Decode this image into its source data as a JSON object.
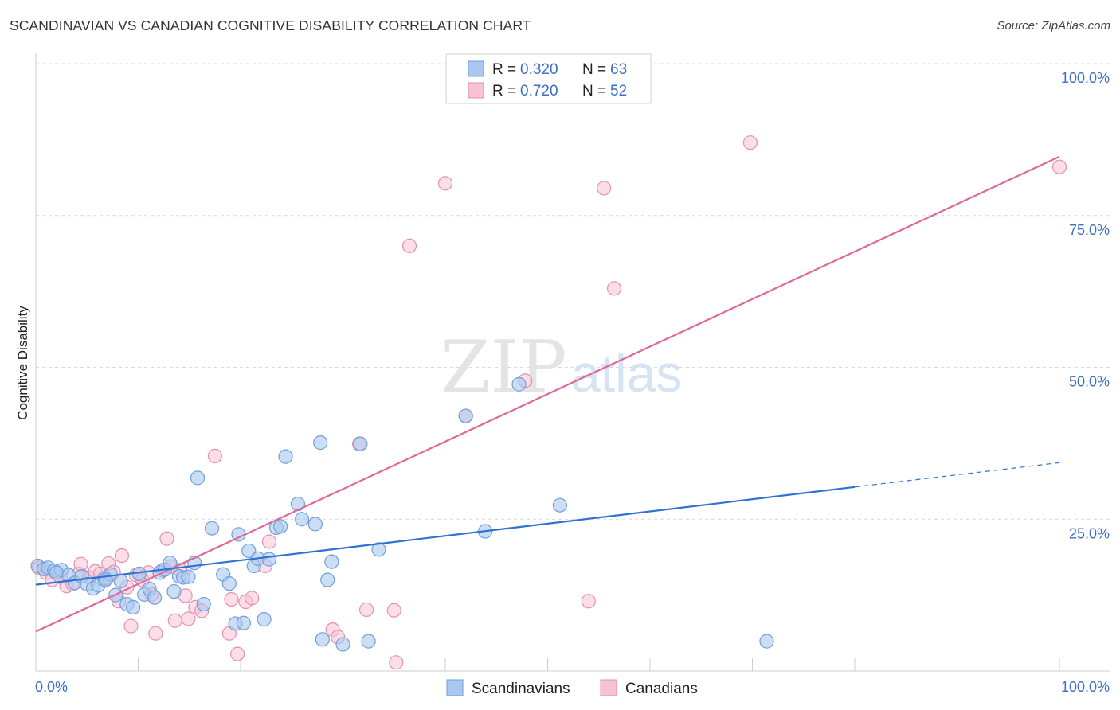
{
  "header": {
    "title": "SCANDINAVIAN VS CANADIAN COGNITIVE DISABILITY CORRELATION CHART",
    "source": "Source: ZipAtlas.com"
  },
  "watermark": {
    "part1": "ZIP",
    "part2": "atlas"
  },
  "colors": {
    "blue_fill": "#a9c8f0",
    "blue_stroke": "#6e9fdc",
    "blue_line": "#2f72d1",
    "pink_fill": "#f7c2d3",
    "pink_stroke": "#e98fb0",
    "pink_line": "#e0679a",
    "tick_text": "#3d6fc4",
    "grid": "#d8d8d8"
  },
  "chart_data": {
    "type": "scatter",
    "ylabel": "Cognitive Disability",
    "xlabel": "",
    "xlim": [
      0,
      100
    ],
    "ylim": [
      0,
      100
    ],
    "x_tick_labels": [
      "0.0%",
      "100.0%"
    ],
    "y_ticks": [
      25,
      50,
      75,
      100
    ],
    "y_tick_labels": [
      "25.0%",
      "50.0%",
      "75.0%",
      "100.0%"
    ],
    "grid": "horizontal dashed",
    "legend_top": [
      {
        "r_label": "R =",
        "r_value": "0.320",
        "n_label": "N =",
        "n_value": "63"
      },
      {
        "r_label": "R =",
        "r_value": "0.720",
        "n_label": "N =",
        "n_value": "52"
      }
    ],
    "legend_bottom": [
      "Scandinavians",
      "Canadians"
    ],
    "series": [
      {
        "name": "Scandinavians",
        "color": "#a9c8f0",
        "trend": {
          "x0": 0,
          "y0": 14.2,
          "x1": 80,
          "y1": 30.3,
          "dashed_to_x": 100,
          "dashed_to_y": 34.3
        },
        "points": [
          [
            0.2,
            17.3
          ],
          [
            0.8,
            16.8
          ],
          [
            1.2,
            17.0
          ],
          [
            1.8,
            16.5
          ],
          [
            2.5,
            16.6
          ],
          [
            3.2,
            15.8
          ],
          [
            3.8,
            14.5
          ],
          [
            4.5,
            15.6
          ],
          [
            5.0,
            14.3
          ],
          [
            5.6,
            13.6
          ],
          [
            6.1,
            14.1
          ],
          [
            6.7,
            15.3
          ],
          [
            7.3,
            15.9
          ],
          [
            7.8,
            12.5
          ],
          [
            8.3,
            14.8
          ],
          [
            8.9,
            11.0
          ],
          [
            9.5,
            10.5
          ],
          [
            10.1,
            16.0
          ],
          [
            10.6,
            12.6
          ],
          [
            11.1,
            13.5
          ],
          [
            11.6,
            12.1
          ],
          [
            12.1,
            16.2
          ],
          [
            12.6,
            16.7
          ],
          [
            13.1,
            17.8
          ],
          [
            13.5,
            13.1
          ],
          [
            14.0,
            15.6
          ],
          [
            14.4,
            15.4
          ],
          [
            14.9,
            15.5
          ],
          [
            15.5,
            17.8
          ],
          [
            15.8,
            31.8
          ],
          [
            16.4,
            11.0
          ],
          [
            17.2,
            23.5
          ],
          [
            18.3,
            15.9
          ],
          [
            18.9,
            14.4
          ],
          [
            19.5,
            7.8
          ],
          [
            19.8,
            22.5
          ],
          [
            20.3,
            7.9
          ],
          [
            20.8,
            19.8
          ],
          [
            21.3,
            17.3
          ],
          [
            21.7,
            18.5
          ],
          [
            22.3,
            8.5
          ],
          [
            22.8,
            18.4
          ],
          [
            23.5,
            23.6
          ],
          [
            23.9,
            23.8
          ],
          [
            24.4,
            35.3
          ],
          [
            25.6,
            27.5
          ],
          [
            26.0,
            25.0
          ],
          [
            27.3,
            24.2
          ],
          [
            27.8,
            37.6
          ],
          [
            28.0,
            5.2
          ],
          [
            28.5,
            15.0
          ],
          [
            28.9,
            18.0
          ],
          [
            30.0,
            4.4
          ],
          [
            31.7,
            37.4
          ],
          [
            32.5,
            4.9
          ],
          [
            33.5,
            20.0
          ],
          [
            42.0,
            42.0
          ],
          [
            47.2,
            47.2
          ],
          [
            43.9,
            23.0
          ],
          [
            51.2,
            27.3
          ],
          [
            71.4,
            4.9
          ],
          [
            6.8,
            15.0
          ],
          [
            2.0,
            16.2
          ]
        ]
      },
      {
        "name": "Canadians",
        "color": "#f7c2d3",
        "trend": {
          "x0": 0,
          "y0": 6.5,
          "x1": 100,
          "y1": 84.7
        },
        "points": [
          [
            0.3,
            17.0
          ],
          [
            1.0,
            16.2
          ],
          [
            1.6,
            15.0
          ],
          [
            2.4,
            15.5
          ],
          [
            3.0,
            14.0
          ],
          [
            3.6,
            14.3
          ],
          [
            4.2,
            16.0
          ],
          [
            4.4,
            17.6
          ],
          [
            5.2,
            15.4
          ],
          [
            5.8,
            16.4
          ],
          [
            6.3,
            16.0
          ],
          [
            6.9,
            15.2
          ],
          [
            7.1,
            17.7
          ],
          [
            7.6,
            16.3
          ],
          [
            8.1,
            11.5
          ],
          [
            8.4,
            19.0
          ],
          [
            8.9,
            13.8
          ],
          [
            9.3,
            7.4
          ],
          [
            9.8,
            15.8
          ],
          [
            10.4,
            15.0
          ],
          [
            11.0,
            16.2
          ],
          [
            11.3,
            12.6
          ],
          [
            11.7,
            6.2
          ],
          [
            12.4,
            16.6
          ],
          [
            12.8,
            21.8
          ],
          [
            13.2,
            17.2
          ],
          [
            13.6,
            8.3
          ],
          [
            14.1,
            16.6
          ],
          [
            14.6,
            12.4
          ],
          [
            14.9,
            8.6
          ],
          [
            15.6,
            10.5
          ],
          [
            16.2,
            9.9
          ],
          [
            17.5,
            35.4
          ],
          [
            18.9,
            6.2
          ],
          [
            19.1,
            11.8
          ],
          [
            19.7,
            2.8
          ],
          [
            20.5,
            11.4
          ],
          [
            21.1,
            12.0
          ],
          [
            22.4,
            17.3
          ],
          [
            22.8,
            21.3
          ],
          [
            29.0,
            6.8
          ],
          [
            29.5,
            5.6
          ],
          [
            31.6,
            37.4
          ],
          [
            32.3,
            10.1
          ],
          [
            35.0,
            10.0
          ],
          [
            35.2,
            1.4
          ],
          [
            36.5,
            70.0
          ],
          [
            40.0,
            80.3
          ],
          [
            42.0,
            42.0
          ],
          [
            47.8,
            47.8
          ],
          [
            54.0,
            11.5
          ],
          [
            55.5,
            79.5
          ],
          [
            56.5,
            63.0
          ],
          [
            69.8,
            87.0
          ],
          [
            100.0,
            83.0
          ]
        ]
      }
    ]
  }
}
